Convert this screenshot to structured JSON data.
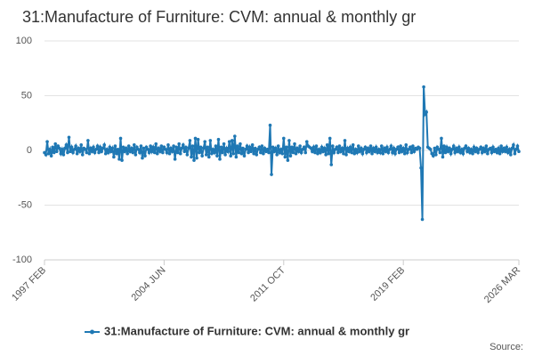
{
  "chart_data": {
    "type": "line",
    "title": "31:Manufacture of Furniture: CVM: annual & monthly gr",
    "source": "Source:",
    "categories": [
      "1997 FEB",
      null,
      null,
      null,
      null,
      null,
      null,
      null,
      null,
      null,
      null,
      null,
      null,
      null,
      null,
      null,
      null,
      null,
      null,
      null,
      null,
      null,
      null,
      null,
      null,
      null,
      null,
      null,
      null,
      null,
      null,
      null,
      null,
      null,
      null,
      null,
      null,
      null,
      null,
      null,
      null,
      null,
      null,
      null,
      null,
      null,
      null,
      null,
      null,
      null,
      null,
      null,
      null,
      null,
      null,
      null,
      null,
      null,
      null,
      null,
      null,
      null,
      null,
      null,
      null,
      null,
      null,
      null,
      null,
      null,
      null,
      null,
      null,
      null,
      null,
      null,
      null,
      null,
      null,
      null,
      null,
      null,
      null,
      null,
      null,
      null,
      null,
      null,
      "2004 JUN",
      null,
      null,
      null,
      null,
      null,
      null,
      null,
      null,
      null,
      null,
      null,
      null,
      null,
      null,
      null,
      null,
      null,
      null,
      null,
      null,
      null,
      null,
      null,
      null,
      null,
      null,
      null,
      null,
      null,
      null,
      null,
      null,
      null,
      null,
      null,
      null,
      null,
      null,
      null,
      null,
      null,
      null,
      null,
      null,
      null,
      null,
      null,
      null,
      null,
      null,
      null,
      null,
      null,
      null,
      null,
      null,
      null,
      null,
      null,
      null,
      null,
      null,
      null,
      null,
      null,
      null,
      null,
      null,
      null,
      null,
      null,
      null,
      null,
      null,
      null,
      null,
      null,
      null,
      null,
      null,
      null,
      null,
      null,
      null,
      null,
      null,
      null,
      "2011 OCT",
      null,
      null,
      null,
      null,
      null,
      null,
      null,
      null,
      null,
      null,
      null,
      null,
      null,
      null,
      null,
      null,
      null,
      null,
      null,
      null,
      null,
      null,
      null,
      null,
      null,
      null,
      null,
      null,
      null,
      null,
      null,
      null,
      null,
      null,
      null,
      null,
      null,
      null,
      null,
      null,
      null,
      null,
      null,
      null,
      null,
      null,
      null,
      null,
      null,
      null,
      null,
      null,
      null,
      null,
      null,
      null,
      null,
      null,
      null,
      null,
      null,
      null,
      null,
      null,
      null,
      null,
      null,
      null,
      null,
      null,
      null,
      null,
      null,
      null,
      null,
      null,
      null,
      null,
      null,
      null,
      null,
      null,
      null,
      null,
      null,
      null,
      null,
      "2019 FEB",
      null,
      null,
      null,
      null,
      null,
      null,
      null,
      null,
      null,
      null,
      null,
      null,
      null,
      null,
      null,
      null,
      null,
      null,
      null,
      null,
      null,
      null,
      null,
      null,
      null,
      null,
      null,
      null,
      null,
      null,
      null,
      null,
      null,
      null,
      null,
      null,
      null,
      null,
      null,
      null,
      null,
      null,
      null,
      null,
      null,
      null,
      null,
      null,
      null,
      null,
      null,
      null,
      null,
      null,
      null,
      null,
      null,
      null,
      null,
      null,
      null,
      null,
      null,
      null,
      null,
      null,
      null,
      null,
      null,
      null,
      null,
      null,
      null,
      null,
      null,
      null,
      null,
      null,
      null,
      null,
      null,
      null,
      null,
      null,
      "2026 MAR"
    ],
    "series": [
      {
        "name": "31:Manufacture of Furniture: CVM: annual & monthly gr",
        "color": "#1f78b4",
        "values": [
          -2,
          -4,
          8,
          -3,
          1,
          -5,
          3,
          -2,
          6,
          -1,
          4,
          2,
          -3,
          1,
          -4,
          2,
          5,
          -2,
          12,
          -1,
          3,
          -2,
          1,
          4,
          -3,
          2,
          -1,
          5,
          -4,
          2,
          1,
          -2,
          9,
          -3,
          2,
          -1,
          3,
          -2,
          1,
          4,
          -2,
          3,
          -1,
          2,
          5,
          -3,
          1,
          -2,
          3,
          -1,
          2,
          -6,
          4,
          -3,
          1,
          -8,
          11,
          -9,
          3,
          -1,
          2,
          -3,
          4,
          -1,
          2,
          -2,
          5,
          -4,
          3,
          1,
          -2,
          4,
          -7,
          2,
          -5,
          3,
          1,
          -2,
          4,
          -1,
          3,
          -2,
          6,
          -3,
          2,
          -1,
          4,
          -2,
          3,
          1,
          -2,
          5,
          -3,
          2,
          -1,
          4,
          -8,
          3,
          -2,
          6,
          -3,
          2,
          5,
          -1,
          3,
          -4,
          2,
          9,
          -6,
          4,
          -9,
          11,
          -7,
          10,
          -2,
          3,
          -5,
          2,
          8,
          -4,
          3,
          -6,
          9,
          -3,
          1,
          -2,
          4,
          -5,
          10,
          -8,
          3,
          -2,
          6,
          -4,
          2,
          -1,
          8,
          -5,
          9,
          -3,
          13,
          -6,
          4,
          -2,
          6,
          -3,
          2,
          -5,
          1,
          4,
          -2,
          3,
          -1,
          5,
          -3,
          2,
          -4,
          1,
          3,
          -2,
          4,
          -3,
          2,
          -1,
          1,
          -2,
          23,
          -22,
          3,
          -1,
          2,
          -4,
          4,
          -2,
          1,
          -3,
          11,
          -6,
          3,
          -9,
          9,
          -5,
          3,
          -2,
          6,
          -3,
          2,
          -1,
          4,
          -2,
          1,
          3,
          -2,
          8,
          4,
          3,
          2,
          -1,
          3,
          -2,
          4,
          -3,
          1,
          -2,
          3,
          -1,
          2,
          -4,
          5,
          -3,
          11,
          -13,
          4,
          -2,
          1,
          3,
          -2,
          4,
          -1,
          2,
          -3,
          9,
          -4,
          2,
          -1,
          3,
          -2,
          5,
          -3,
          1,
          -2,
          4,
          -1,
          2,
          -3,
          1,
          3,
          -2,
          2,
          -1,
          4,
          -3,
          2,
          -1,
          3,
          -2,
          1,
          -2,
          4,
          -3,
          2,
          -1,
          3,
          -2,
          1,
          4,
          -2,
          2,
          -3,
          1,
          3,
          -2,
          4,
          -1,
          2,
          -3,
          5,
          -2,
          1,
          3,
          -2,
          4,
          -1,
          2,
          1,
          3,
          2,
          -16,
          -63,
          58,
          33,
          35,
          3,
          2,
          1,
          -3,
          -5,
          2,
          -4,
          3,
          1,
          -2,
          11,
          -6,
          4,
          -2,
          3,
          -1,
          2,
          -3,
          1,
          4,
          -2,
          2,
          -1,
          3,
          -2,
          1,
          -3,
          2,
          4,
          -1,
          2,
          -2,
          1,
          -3,
          3,
          -1,
          2,
          -2,
          1,
          3,
          -2,
          2,
          -1,
          4,
          -3,
          1,
          2,
          -2,
          3,
          -1,
          1,
          -2,
          2,
          -3,
          4,
          -1,
          2,
          -1,
          3,
          -2,
          1,
          -4,
          2,
          5,
          -3,
          1,
          4,
          -1
        ]
      }
    ],
    "ylim": [
      -100,
      100
    ],
    "yticks": [
      -100,
      -50,
      0,
      50,
      100
    ],
    "grid": true,
    "legend": "bottom"
  }
}
